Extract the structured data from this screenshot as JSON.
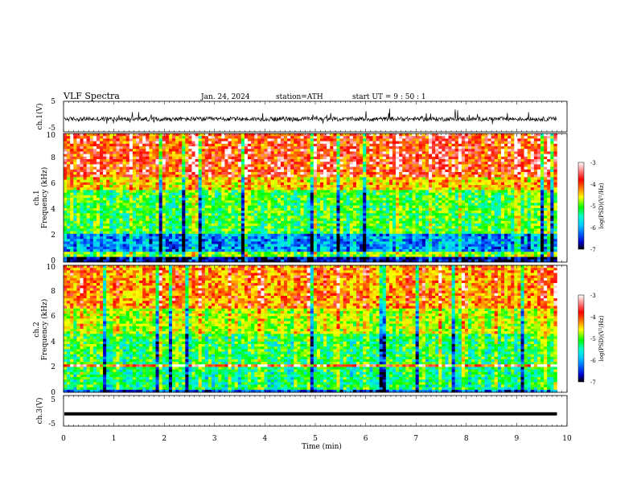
{
  "header": {
    "title": "VLF  Spectra",
    "date": "Jan. 24, 2024",
    "station": "station=ATH",
    "start": "start  UT  =   9  : 50 : 1"
  },
  "chart_data": {
    "type": "heatmap",
    "xlabel": "Time  (min)",
    "xlim": [
      0,
      10
    ],
    "xticks": [
      "0",
      "1",
      "2",
      "3",
      "4",
      "5",
      "6",
      "7",
      "8",
      "9",
      "10"
    ],
    "data_end_min": 9.8,
    "panels": [
      {
        "id": "ch1-waveform",
        "kind": "waveform",
        "ylabel": "ch.1(V)",
        "ylim": [
          -5,
          5
        ],
        "yticks": [
          "5",
          "-5"
        ],
        "level": -0.8,
        "amplitude": 1.4
      },
      {
        "id": "ch1-spectrogram",
        "kind": "spectrogram",
        "ylabel": [
          "ch.1",
          "Frequency (kHz)"
        ],
        "ylim": [
          0,
          10
        ],
        "yticks": [
          "0",
          "2",
          "4",
          "6",
          "8",
          "10"
        ],
        "colorbar": {
          "label": "log(PSD)(V²/Hz)",
          "range": [
            -7,
            -3
          ],
          "ticks": [
            "-3",
            "-4",
            "-5",
            "-6",
            "-7"
          ]
        }
      },
      {
        "id": "ch2-spectrogram",
        "kind": "spectrogram",
        "ylabel": [
          "ch.2",
          "Frequency (kHz)"
        ],
        "ylim": [
          0,
          10
        ],
        "yticks": [
          "0",
          "2",
          "4",
          "6",
          "8",
          "10"
        ],
        "colorbar": {
          "label": "log(PSD)(V²/Hz)",
          "range": [
            -7,
            -3
          ],
          "ticks": [
            "-3",
            "-4",
            "-5",
            "-6",
            "-7"
          ]
        }
      },
      {
        "id": "ch3-waveform",
        "kind": "waveform",
        "ylabel": "ch.3(V)",
        "ylim": [
          -5,
          5
        ],
        "yticks": [
          "5",
          "-5"
        ],
        "level": -1.0,
        "amplitude": 0.25
      }
    ]
  }
}
